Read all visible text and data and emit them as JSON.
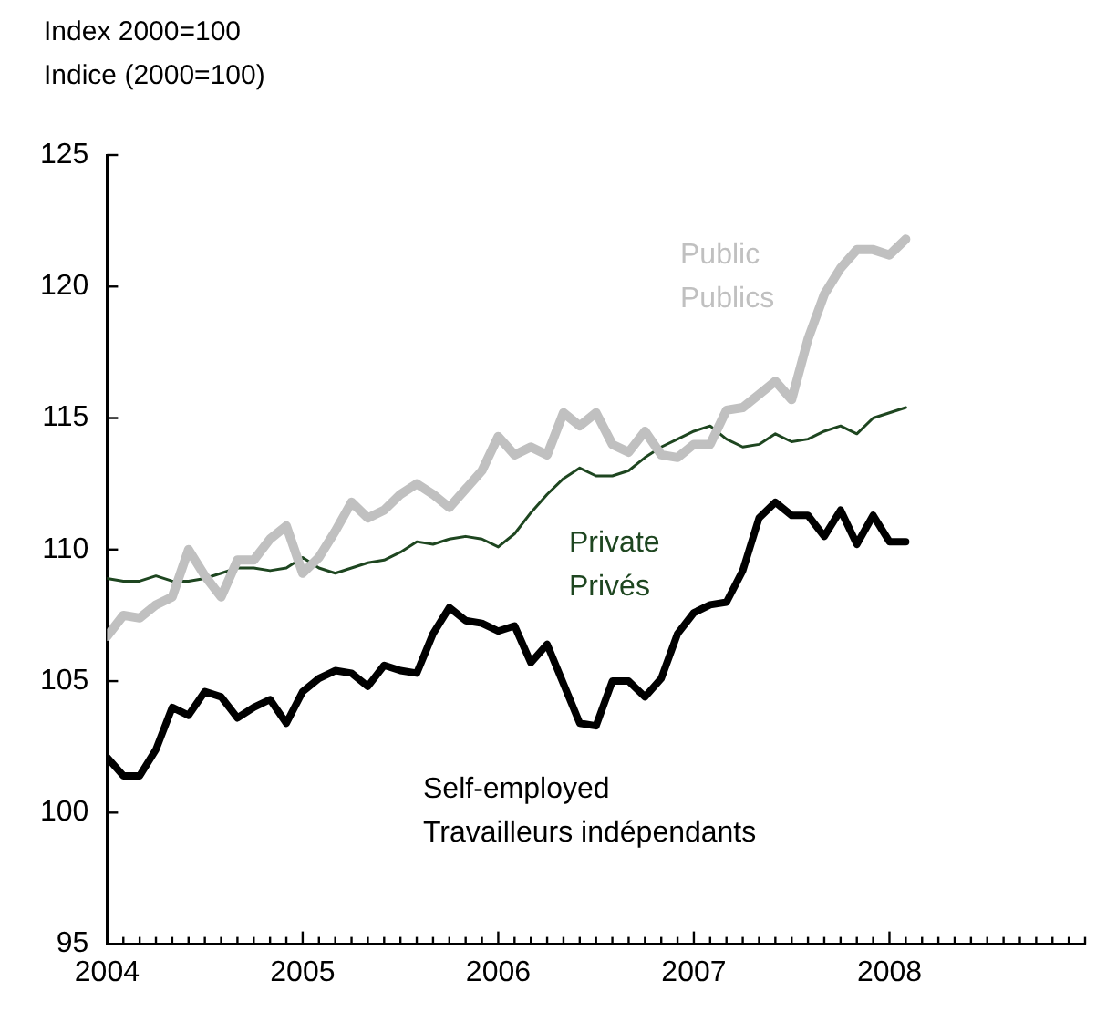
{
  "chart_data": {
    "type": "line",
    "ylabel": "Index 2000=100\nIndice (2000=100)",
    "x": [
      "2004-01",
      "2004-02",
      "2004-03",
      "2004-04",
      "2004-05",
      "2004-06",
      "2004-07",
      "2004-08",
      "2004-09",
      "2004-10",
      "2004-11",
      "2004-12",
      "2005-01",
      "2005-02",
      "2005-03",
      "2005-04",
      "2005-05",
      "2005-06",
      "2005-07",
      "2005-08",
      "2005-09",
      "2005-10",
      "2005-11",
      "2005-12",
      "2006-01",
      "2006-02",
      "2006-03",
      "2006-04",
      "2006-05",
      "2006-06",
      "2006-07",
      "2006-08",
      "2006-09",
      "2006-10",
      "2006-11",
      "2006-12",
      "2007-01",
      "2007-02",
      "2007-03",
      "2007-04",
      "2007-05",
      "2007-06",
      "2007-07",
      "2007-08",
      "2007-09",
      "2007-10",
      "2007-11",
      "2007-12",
      "2008-01",
      "2008-02"
    ],
    "series": [
      {
        "name": "Public\nPublics",
        "color": "#c0c0c0",
        "values": [
          106.7,
          107.5,
          107.4,
          107.9,
          108.2,
          110.0,
          109.0,
          108.2,
          109.6,
          109.6,
          110.4,
          110.9,
          109.1,
          109.7,
          110.7,
          111.8,
          111.2,
          111.5,
          112.1,
          112.5,
          112.1,
          111.6,
          112.3,
          113.0,
          114.3,
          113.6,
          113.9,
          113.6,
          115.2,
          114.7,
          115.2,
          114.0,
          113.7,
          114.5,
          113.6,
          113.5,
          114.0,
          114.0,
          115.3,
          115.4,
          115.9,
          116.4,
          115.7,
          118.0,
          119.7,
          120.7,
          121.4,
          121.4,
          121.2,
          121.8
        ]
      },
      {
        "name": "Private\nPrivés",
        "color": "#1e4620",
        "values": [
          108.9,
          108.8,
          108.8,
          109.0,
          108.8,
          108.8,
          108.9,
          109.1,
          109.3,
          109.3,
          109.2,
          109.3,
          109.7,
          109.3,
          109.1,
          109.3,
          109.5,
          109.6,
          109.9,
          110.3,
          110.2,
          110.4,
          110.5,
          110.4,
          110.1,
          110.6,
          111.4,
          112.1,
          112.7,
          113.1,
          112.8,
          112.8,
          113.0,
          113.5,
          113.9,
          114.2,
          114.5,
          114.7,
          114.2,
          113.9,
          114.0,
          114.4,
          114.1,
          114.2,
          114.5,
          114.7,
          114.4,
          115.0,
          115.2,
          115.4
        ]
      },
      {
        "name": "Self-employed\nTravailleurs indépendants",
        "color": "#000000",
        "values": [
          102.1,
          101.4,
          101.4,
          102.4,
          104.0,
          103.7,
          104.6,
          104.4,
          103.6,
          104.0,
          104.3,
          103.4,
          104.6,
          105.1,
          105.4,
          105.3,
          104.8,
          105.6,
          105.4,
          105.3,
          106.8,
          107.8,
          107.3,
          107.2,
          106.9,
          107.1,
          105.7,
          106.4,
          104.9,
          103.4,
          103.3,
          105.0,
          105.0,
          104.4,
          105.1,
          106.8,
          107.6,
          107.9,
          108.0,
          109.2,
          111.2,
          111.8,
          111.3,
          111.3,
          110.5,
          111.5,
          110.2,
          111.3,
          110.3,
          110.3
        ]
      }
    ],
    "xlim": [
      "2004-01",
      "2009-01"
    ],
    "xticks": [
      {
        "value": "2004-01",
        "label": "2004"
      },
      {
        "value": "2004-02",
        "label": null
      },
      {
        "value": "2004-03",
        "label": null
      },
      {
        "value": "2004-04",
        "label": null
      },
      {
        "value": "2004-05",
        "label": null
      },
      {
        "value": "2004-06",
        "label": null
      },
      {
        "value": "2004-07",
        "label": null
      },
      {
        "value": "2004-08",
        "label": null
      },
      {
        "value": "2004-09",
        "label": null
      },
      {
        "value": "2004-10",
        "label": null
      },
      {
        "value": "2004-11",
        "label": null
      },
      {
        "value": "2004-12",
        "label": null
      },
      {
        "value": "2005-01",
        "label": "2005"
      },
      {
        "value": "2005-02",
        "label": null
      },
      {
        "value": "2005-03",
        "label": null
      },
      {
        "value": "2005-04",
        "label": null
      },
      {
        "value": "2005-05",
        "label": null
      },
      {
        "value": "2005-06",
        "label": null
      },
      {
        "value": "2005-07",
        "label": null
      },
      {
        "value": "2005-08",
        "label": null
      },
      {
        "value": "2005-09",
        "label": null
      },
      {
        "value": "2005-10",
        "label": null
      },
      {
        "value": "2005-11",
        "label": null
      },
      {
        "value": "2005-12",
        "label": null
      },
      {
        "value": "2006-01",
        "label": "2006"
      },
      {
        "value": "2006-02",
        "label": null
      },
      {
        "value": "2006-03",
        "label": null
      },
      {
        "value": "2006-04",
        "label": null
      },
      {
        "value": "2006-05",
        "label": null
      },
      {
        "value": "2006-06",
        "label": null
      },
      {
        "value": "2006-07",
        "label": null
      },
      {
        "value": "2006-08",
        "label": null
      },
      {
        "value": "2006-09",
        "label": null
      },
      {
        "value": "2006-10",
        "label": null
      },
      {
        "value": "2006-11",
        "label": null
      },
      {
        "value": "2006-12",
        "label": null
      },
      {
        "value": "2007-01",
        "label": "2007"
      },
      {
        "value": "2007-02",
        "label": null
      },
      {
        "value": "2007-03",
        "label": null
      },
      {
        "value": "2007-04",
        "label": null
      },
      {
        "value": "2007-05",
        "label": null
      },
      {
        "value": "2007-06",
        "label": null
      },
      {
        "value": "2007-07",
        "label": null
      },
      {
        "value": "2007-08",
        "label": null
      },
      {
        "value": "2007-09",
        "label": null
      },
      {
        "value": "2007-10",
        "label": null
      },
      {
        "value": "2007-11",
        "label": null
      },
      {
        "value": "2007-12",
        "label": null
      },
      {
        "value": "2008-01",
        "label": "2008"
      },
      {
        "value": "2008-02",
        "label": null
      },
      {
        "value": "2008-03",
        "label": null
      },
      {
        "value": "2008-04",
        "label": null
      },
      {
        "value": "2008-05",
        "label": null
      },
      {
        "value": "2008-06",
        "label": null
      },
      {
        "value": "2008-07",
        "label": null
      },
      {
        "value": "2008-08",
        "label": null
      },
      {
        "value": "2008-09",
        "label": null
      },
      {
        "value": "2008-10",
        "label": null
      },
      {
        "value": "2008-11",
        "label": null
      },
      {
        "value": "2008-12",
        "label": null
      },
      {
        "value": "2009-01",
        "label": null
      }
    ],
    "ylim": [
      95,
      125
    ],
    "yticks": [
      95,
      100,
      105,
      110,
      115,
      120,
      125
    ],
    "grid": false,
    "legend": false,
    "marker": "none",
    "line_style": "solid"
  }
}
